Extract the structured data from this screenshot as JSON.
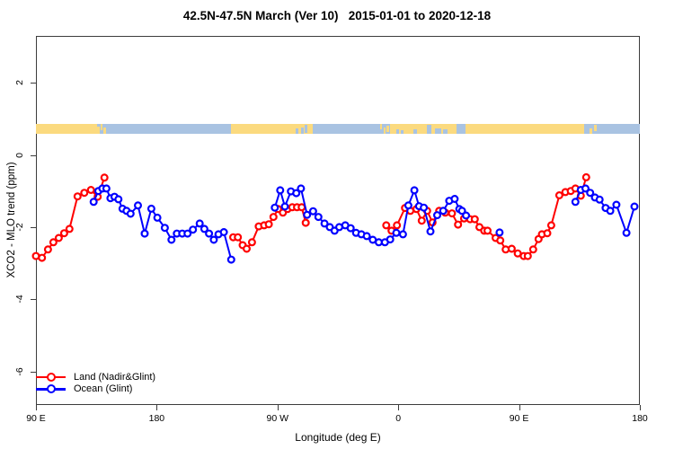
{
  "title": "42.5N-47.5N March (Ver 10)   2015-01-01 to 2020-12-18",
  "axes": {
    "x": {
      "label": "Longitude (deg E)",
      "ticks": [
        "90 E",
        "180",
        "90 W",
        "0",
        "90 E",
        "180"
      ],
      "tick_values": [
        90,
        180,
        270,
        360,
        450,
        540
      ],
      "range": [
        90,
        540
      ]
    },
    "y": {
      "label": "XCO2 - MLO trend (ppm)",
      "ticks": [
        "2",
        "0",
        "-2",
        "-4",
        "-6"
      ],
      "tick_values": [
        2,
        0,
        -2,
        -4,
        -6
      ],
      "range": [
        -7.2,
        3.3
      ]
    }
  },
  "legend": [
    {
      "label": "Land (Nadir&Glint)",
      "color": "#ff0000"
    },
    {
      "label": "Ocean (Glint)",
      "color": "#0000ff"
    }
  ],
  "colors": {
    "land_series": "#ff0000",
    "ocean_series": "#0000ff",
    "map_land": "#fbda7f",
    "map_ocean": "#a9c3e2",
    "axis": "#3c3c3c"
  },
  "map_strip": {
    "y_ppm": [
      0.575,
      0.865
    ],
    "segments": [
      {
        "f": 90,
        "t": 135.5,
        "k": "land",
        "v": [
          0,
          1
        ]
      },
      {
        "f": 135.8,
        "t": 137.3,
        "k": "land",
        "v": [
          0.3,
          1
        ]
      },
      {
        "f": 138,
        "t": 139.8,
        "k": "land",
        "v": [
          0,
          0.6
        ]
      },
      {
        "f": 140.5,
        "t": 142,
        "k": "land",
        "v": [
          0.35,
          1
        ]
      },
      {
        "f": 235.5,
        "t": 296,
        "k": "land",
        "v": [
          0,
          1
        ]
      },
      {
        "f": 283.5,
        "t": 285.5,
        "k": "ocean",
        "v": [
          0.5,
          1
        ]
      },
      {
        "f": 287.5,
        "t": 289.5,
        "k": "ocean",
        "v": [
          0.4,
          1
        ]
      },
      {
        "f": 290.5,
        "t": 292.5,
        "k": "ocean",
        "v": [
          0.15,
          0.9
        ]
      },
      {
        "f": 346.5,
        "t": 348,
        "k": "land",
        "v": [
          0,
          0.55
        ]
      },
      {
        "f": 348.8,
        "t": 350.3,
        "k": "land",
        "v": [
          0.4,
          1
        ]
      },
      {
        "f": 351,
        "t": 353,
        "k": "land",
        "v": [
          0.2,
          0.8
        ]
      },
      {
        "f": 354,
        "t": 498.5,
        "k": "land",
        "v": [
          0,
          1
        ]
      },
      {
        "f": 358.5,
        "t": 360.5,
        "k": "ocean",
        "v": [
          0.55,
          1
        ]
      },
      {
        "f": 362,
        "t": 364,
        "k": "ocean",
        "v": [
          0.6,
          1
        ]
      },
      {
        "f": 371.5,
        "t": 374,
        "k": "ocean",
        "v": [
          0.55,
          1
        ]
      },
      {
        "f": 381.3,
        "t": 384.7,
        "k": "ocean",
        "v": [
          0.15,
          1
        ]
      },
      {
        "f": 387.5,
        "t": 392,
        "k": "ocean",
        "v": [
          0.5,
          1
        ]
      },
      {
        "f": 393.5,
        "t": 396.5,
        "k": "ocean",
        "v": [
          0.55,
          1
        ]
      },
      {
        "f": 403.5,
        "t": 410,
        "k": "ocean",
        "v": [
          0,
          1
        ]
      },
      {
        "f": 502.5,
        "t": 504.5,
        "k": "land",
        "v": [
          0.45,
          1
        ]
      },
      {
        "f": 505.5,
        "t": 507.5,
        "k": "land",
        "v": [
          0.1,
          0.7
        ]
      }
    ]
  },
  "chart_data": {
    "type": "line",
    "title": "42.5N-47.5N March (Ver 10)   2015-01-01 to 2020-12-18",
    "xlabel": "Longitude (deg E)",
    "ylabel": "XCO2 - MLO trend (ppm)",
    "xlim": [
      90,
      540
    ],
    "ylim": [
      -7.2,
      3.3
    ],
    "x_units": "degrees east, wrapping 90E through 180 to 180 again",
    "marker": "open-circle",
    "series": [
      {
        "name": "Land (Nadir&Glint)",
        "color": "#ff0000",
        "segments": [
          [
            [
              90,
              -2.8
            ],
            [
              94.5,
              -2.85
            ],
            [
              99,
              -2.62
            ],
            [
              103,
              -2.42
            ],
            [
              107,
              -2.3
            ],
            [
              111,
              -2.17
            ],
            [
              115,
              -2.05
            ],
            [
              121,
              -1.15
            ],
            [
              126,
              -1.05
            ],
            [
              131,
              -0.97
            ],
            [
              136,
              -1.16
            ],
            [
              141,
              -0.63
            ]
          ],
          [
            [
              237,
              -2.28
            ],
            [
              240.5,
              -2.28
            ],
            [
              244,
              -2.5
            ],
            [
              247,
              -2.6
            ],
            [
              251,
              -2.42
            ],
            [
              256,
              -1.98
            ],
            [
              260,
              -1.95
            ],
            [
              263.5,
              -1.92
            ],
            [
              267,
              -1.72
            ],
            [
              270.5,
              -1.5
            ],
            [
              274,
              -1.6
            ],
            [
              277.5,
              -1.5
            ],
            [
              281,
              -1.45
            ],
            [
              284.5,
              -1.45
            ],
            [
              288,
              -1.45
            ],
            [
              291,
              -1.88
            ]
          ],
          [
            [
              351,
              -1.95
            ],
            [
              355,
              -2.1
            ],
            [
              359,
              -1.95
            ],
            [
              365,
              -1.47
            ],
            [
              369,
              -1.55
            ],
            [
              373.5,
              -1.5
            ],
            [
              377.5,
              -1.82
            ],
            [
              381.5,
              -1.55
            ],
            [
              385.5,
              -1.87
            ],
            [
              390.5,
              -1.55
            ],
            [
              395,
              -1.6
            ],
            [
              400,
              -1.62
            ],
            [
              404.5,
              -1.93
            ],
            [
              409,
              -1.76
            ],
            [
              413.5,
              -1.78
            ],
            [
              417,
              -1.78
            ],
            [
              420.5,
              -2.0
            ],
            [
              424,
              -2.1
            ],
            [
              426.5,
              -2.1
            ],
            [
              432.5,
              -2.3
            ],
            [
              436,
              -2.37
            ],
            [
              440,
              -2.62
            ],
            [
              444.5,
              -2.6
            ],
            [
              449,
              -2.73
            ],
            [
              453.5,
              -2.8
            ],
            [
              456.5,
              -2.8
            ],
            [
              460.5,
              -2.62
            ],
            [
              464.5,
              -2.33
            ],
            [
              467,
              -2.2
            ],
            [
              471,
              -2.17
            ],
            [
              474,
              -1.95
            ],
            [
              480,
              -1.12
            ],
            [
              484.5,
              -1.03
            ],
            [
              488.5,
              -1.0
            ],
            [
              492,
              -0.93
            ],
            [
              496,
              -1.13
            ],
            [
              500,
              -0.62
            ]
          ]
        ]
      },
      {
        "name": "Ocean (Glint)",
        "color": "#0000ff",
        "segments": [
          [
            [
              133,
              -1.3
            ],
            [
              136.5,
              -1.0
            ],
            [
              139.5,
              -0.93
            ],
            [
              142.5,
              -0.93
            ],
            [
              145.5,
              -1.2
            ],
            [
              148.5,
              -1.16
            ],
            [
              151.5,
              -1.23
            ],
            [
              154.5,
              -1.49
            ],
            [
              157.5,
              -1.55
            ],
            [
              160.5,
              -1.63
            ],
            [
              166,
              -1.4
            ],
            [
              171,
              -2.18
            ],
            [
              176,
              -1.49
            ],
            [
              180.5,
              -1.74
            ],
            [
              186,
              -2.02
            ],
            [
              191,
              -2.35
            ],
            [
              195,
              -2.18
            ],
            [
              199,
              -2.18
            ],
            [
              203,
              -2.18
            ],
            [
              207,
              -2.07
            ],
            [
              212,
              -1.9
            ],
            [
              215.5,
              -2.05
            ],
            [
              219,
              -2.18
            ],
            [
              222.5,
              -2.35
            ],
            [
              226,
              -2.2
            ],
            [
              230,
              -2.14
            ],
            [
              235.5,
              -2.9
            ]
          ],
          [
            [
              268,
              -1.46
            ],
            [
              272,
              -0.98
            ],
            [
              275.5,
              -1.43
            ],
            [
              280,
              -1.01
            ],
            [
              284,
              -1.06
            ],
            [
              287.5,
              -0.93
            ],
            [
              292,
              -1.66
            ],
            [
              296.5,
              -1.56
            ],
            [
              300.5,
              -1.72
            ],
            [
              305,
              -1.9
            ],
            [
              309,
              -2.0
            ],
            [
              312.5,
              -2.1
            ],
            [
              316,
              -2.0
            ],
            [
              320.5,
              -1.95
            ],
            [
              324.5,
              -2.03
            ],
            [
              328.5,
              -2.16
            ],
            [
              332.5,
              -2.2
            ],
            [
              336.5,
              -2.25
            ],
            [
              341,
              -2.35
            ],
            [
              345.5,
              -2.42
            ],
            [
              350,
              -2.42
            ],
            [
              354,
              -2.34
            ],
            [
              358.5,
              -2.16
            ],
            [
              363.5,
              -2.2
            ],
            [
              367.5,
              -1.4
            ],
            [
              372,
              -0.98
            ],
            [
              375.5,
              -1.42
            ],
            [
              379,
              -1.46
            ],
            [
              384,
              -2.12
            ],
            [
              389,
              -1.67
            ],
            [
              393.5,
              -1.55
            ],
            [
              398,
              -1.27
            ],
            [
              402,
              -1.22
            ],
            [
              405.5,
              -1.5
            ],
            [
              407.5,
              -1.55
            ],
            [
              410.5,
              -1.68
            ]
          ],
          [
            [
              435.5,
              -2.15
            ]
          ],
          [
            [
              492,
              -1.3
            ],
            [
              496,
              -0.97
            ],
            [
              499.5,
              -0.93
            ],
            [
              503,
              -1.05
            ],
            [
              506.5,
              -1.18
            ],
            [
              510,
              -1.24
            ],
            [
              514.5,
              -1.47
            ],
            [
              518,
              -1.55
            ],
            [
              522.5,
              -1.38
            ],
            [
              530,
              -2.16
            ],
            [
              536,
              -1.43
            ]
          ]
        ]
      }
    ]
  }
}
